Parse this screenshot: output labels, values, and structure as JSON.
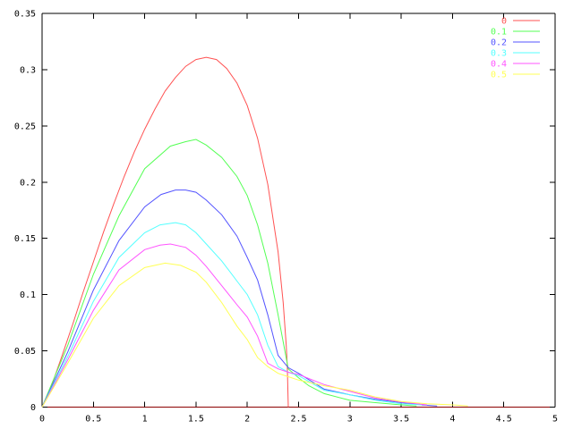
{
  "figure": {
    "background": "#ffffff",
    "text_color": "#000000"
  },
  "chart_data": {
    "type": "line",
    "title": "",
    "xlabel": "",
    "ylabel": "",
    "xlim": [
      0,
      5
    ],
    "ylim": [
      0,
      0.35
    ],
    "grid": false,
    "border_color": "#000000",
    "bottom_axis_color": "#8b0000",
    "text_color": "#000000",
    "legend_position": "top-right",
    "legend_labels_colored": true,
    "x_ticks": {
      "values": [
        0,
        0.5,
        1,
        1.5,
        2,
        2.5,
        3,
        3.5,
        4,
        4.5,
        5
      ],
      "labels": [
        "0",
        "0.5",
        "1",
        "1.5",
        "2",
        "2.5",
        "3",
        "3.5",
        "4",
        "4.5",
        "5"
      ]
    },
    "y_ticks": {
      "values": [
        0,
        0.05,
        0.1,
        0.15,
        0.2,
        0.25,
        0.3,
        0.35
      ],
      "labels": [
        "0",
        "0.05",
        "0.1",
        "0.15",
        "0.2",
        "0.25",
        "0.3",
        "0.35"
      ]
    },
    "series": [
      {
        "name": "0",
        "color": "#ff5252",
        "points": [
          [
            0,
            0
          ],
          [
            0.1,
            0.021
          ],
          [
            0.2,
            0.047
          ],
          [
            0.3,
            0.074
          ],
          [
            0.4,
            0.102
          ],
          [
            0.5,
            0.129
          ],
          [
            0.6,
            0.156
          ],
          [
            0.7,
            0.181
          ],
          [
            0.8,
            0.205
          ],
          [
            0.9,
            0.227
          ],
          [
            1.0,
            0.247
          ],
          [
            1.1,
            0.265
          ],
          [
            1.2,
            0.281
          ],
          [
            1.3,
            0.293
          ],
          [
            1.4,
            0.303
          ],
          [
            1.5,
            0.309
          ],
          [
            1.6,
            0.311
          ],
          [
            1.7,
            0.309
          ],
          [
            1.8,
            0.301
          ],
          [
            1.9,
            0.288
          ],
          [
            2.0,
            0.268
          ],
          [
            2.1,
            0.239
          ],
          [
            2.2,
            0.198
          ],
          [
            2.3,
            0.138
          ],
          [
            2.35,
            0.093
          ],
          [
            2.38,
            0.055
          ],
          [
            2.39,
            0.036
          ],
          [
            2.4,
            0
          ]
        ]
      },
      {
        "name": "0.1",
        "color": "#54ff54",
        "points": [
          [
            0,
            0
          ],
          [
            0.25,
            0.055
          ],
          [
            0.5,
            0.118
          ],
          [
            0.75,
            0.17
          ],
          [
            1.0,
            0.212
          ],
          [
            1.25,
            0.232
          ],
          [
            1.4,
            0.236
          ],
          [
            1.5,
            0.238
          ],
          [
            1.6,
            0.233
          ],
          [
            1.75,
            0.222
          ],
          [
            1.9,
            0.205
          ],
          [
            2.0,
            0.188
          ],
          [
            2.1,
            0.162
          ],
          [
            2.2,
            0.128
          ],
          [
            2.3,
            0.082
          ],
          [
            2.35,
            0.058
          ],
          [
            2.4,
            0.034
          ],
          [
            2.5,
            0.026
          ],
          [
            2.6,
            0.019
          ],
          [
            2.75,
            0.012
          ],
          [
            3.0,
            0.006
          ],
          [
            3.25,
            0.004
          ],
          [
            3.5,
            0.002
          ],
          [
            3.65,
            0.001
          ]
        ]
      },
      {
        "name": "0.2",
        "color": "#5454ff",
        "points": [
          [
            0,
            0
          ],
          [
            0.25,
            0.049
          ],
          [
            0.5,
            0.104
          ],
          [
            0.75,
            0.148
          ],
          [
            1.0,
            0.178
          ],
          [
            1.16,
            0.189
          ],
          [
            1.3,
            0.193
          ],
          [
            1.4,
            0.193
          ],
          [
            1.5,
            0.191
          ],
          [
            1.6,
            0.184
          ],
          [
            1.75,
            0.171
          ],
          [
            1.9,
            0.152
          ],
          [
            2.0,
            0.133
          ],
          [
            2.1,
            0.113
          ],
          [
            2.2,
            0.082
          ],
          [
            2.3,
            0.046
          ],
          [
            2.4,
            0.035
          ],
          [
            2.5,
            0.03
          ],
          [
            2.75,
            0.016
          ],
          [
            3.0,
            0.011
          ],
          [
            3.25,
            0.007
          ],
          [
            3.5,
            0.004
          ],
          [
            3.7,
            0.002
          ],
          [
            3.85,
            0.001
          ]
        ]
      },
      {
        "name": "0.3",
        "color": "#54ffff",
        "points": [
          [
            0,
            0
          ],
          [
            0.25,
            0.045
          ],
          [
            0.5,
            0.094
          ],
          [
            0.75,
            0.133
          ],
          [
            1.0,
            0.155
          ],
          [
            1.15,
            0.162
          ],
          [
            1.3,
            0.164
          ],
          [
            1.4,
            0.162
          ],
          [
            1.5,
            0.155
          ],
          [
            1.6,
            0.145
          ],
          [
            1.75,
            0.13
          ],
          [
            1.9,
            0.112
          ],
          [
            2.0,
            0.1
          ],
          [
            2.1,
            0.082
          ],
          [
            2.2,
            0.055
          ],
          [
            2.3,
            0.036
          ],
          [
            2.4,
            0.031
          ],
          [
            2.5,
            0.028
          ],
          [
            2.75,
            0.015
          ],
          [
            3.0,
            0.011
          ],
          [
            3.25,
            0.006
          ],
          [
            3.5,
            0.003
          ],
          [
            3.7,
            0.002
          ]
        ]
      },
      {
        "name": "0.4",
        "color": "#ff54ff",
        "points": [
          [
            0,
            0
          ],
          [
            0.25,
            0.042
          ],
          [
            0.5,
            0.086
          ],
          [
            0.75,
            0.122
          ],
          [
            1.0,
            0.14
          ],
          [
            1.15,
            0.144
          ],
          [
            1.25,
            0.145
          ],
          [
            1.4,
            0.142
          ],
          [
            1.5,
            0.135
          ],
          [
            1.6,
            0.125
          ],
          [
            1.75,
            0.108
          ],
          [
            1.9,
            0.091
          ],
          [
            2.0,
            0.08
          ],
          [
            2.1,
            0.063
          ],
          [
            2.2,
            0.039
          ],
          [
            2.3,
            0.034
          ],
          [
            2.4,
            0.031
          ],
          [
            2.5,
            0.029
          ],
          [
            2.75,
            0.02
          ],
          [
            3.0,
            0.014
          ],
          [
            3.25,
            0.008
          ],
          [
            3.5,
            0.0045
          ],
          [
            3.75,
            0.002
          ]
        ]
      },
      {
        "name": "0.5",
        "color": "#ffff54",
        "points": [
          [
            0,
            0
          ],
          [
            0.25,
            0.039
          ],
          [
            0.5,
            0.079
          ],
          [
            0.75,
            0.108
          ],
          [
            1.0,
            0.124
          ],
          [
            1.2,
            0.128
          ],
          [
            1.35,
            0.126
          ],
          [
            1.5,
            0.12
          ],
          [
            1.6,
            0.111
          ],
          [
            1.75,
            0.093
          ],
          [
            1.9,
            0.072
          ],
          [
            2.0,
            0.06
          ],
          [
            2.1,
            0.044
          ],
          [
            2.2,
            0.036
          ],
          [
            2.3,
            0.03
          ],
          [
            2.4,
            0.027
          ],
          [
            2.5,
            0.024
          ],
          [
            2.75,
            0.019
          ],
          [
            3.0,
            0.015
          ],
          [
            3.25,
            0.009
          ],
          [
            3.5,
            0.005
          ],
          [
            3.75,
            0.003
          ],
          [
            4.0,
            0.002
          ],
          [
            4.15,
            0.001
          ]
        ]
      }
    ]
  }
}
